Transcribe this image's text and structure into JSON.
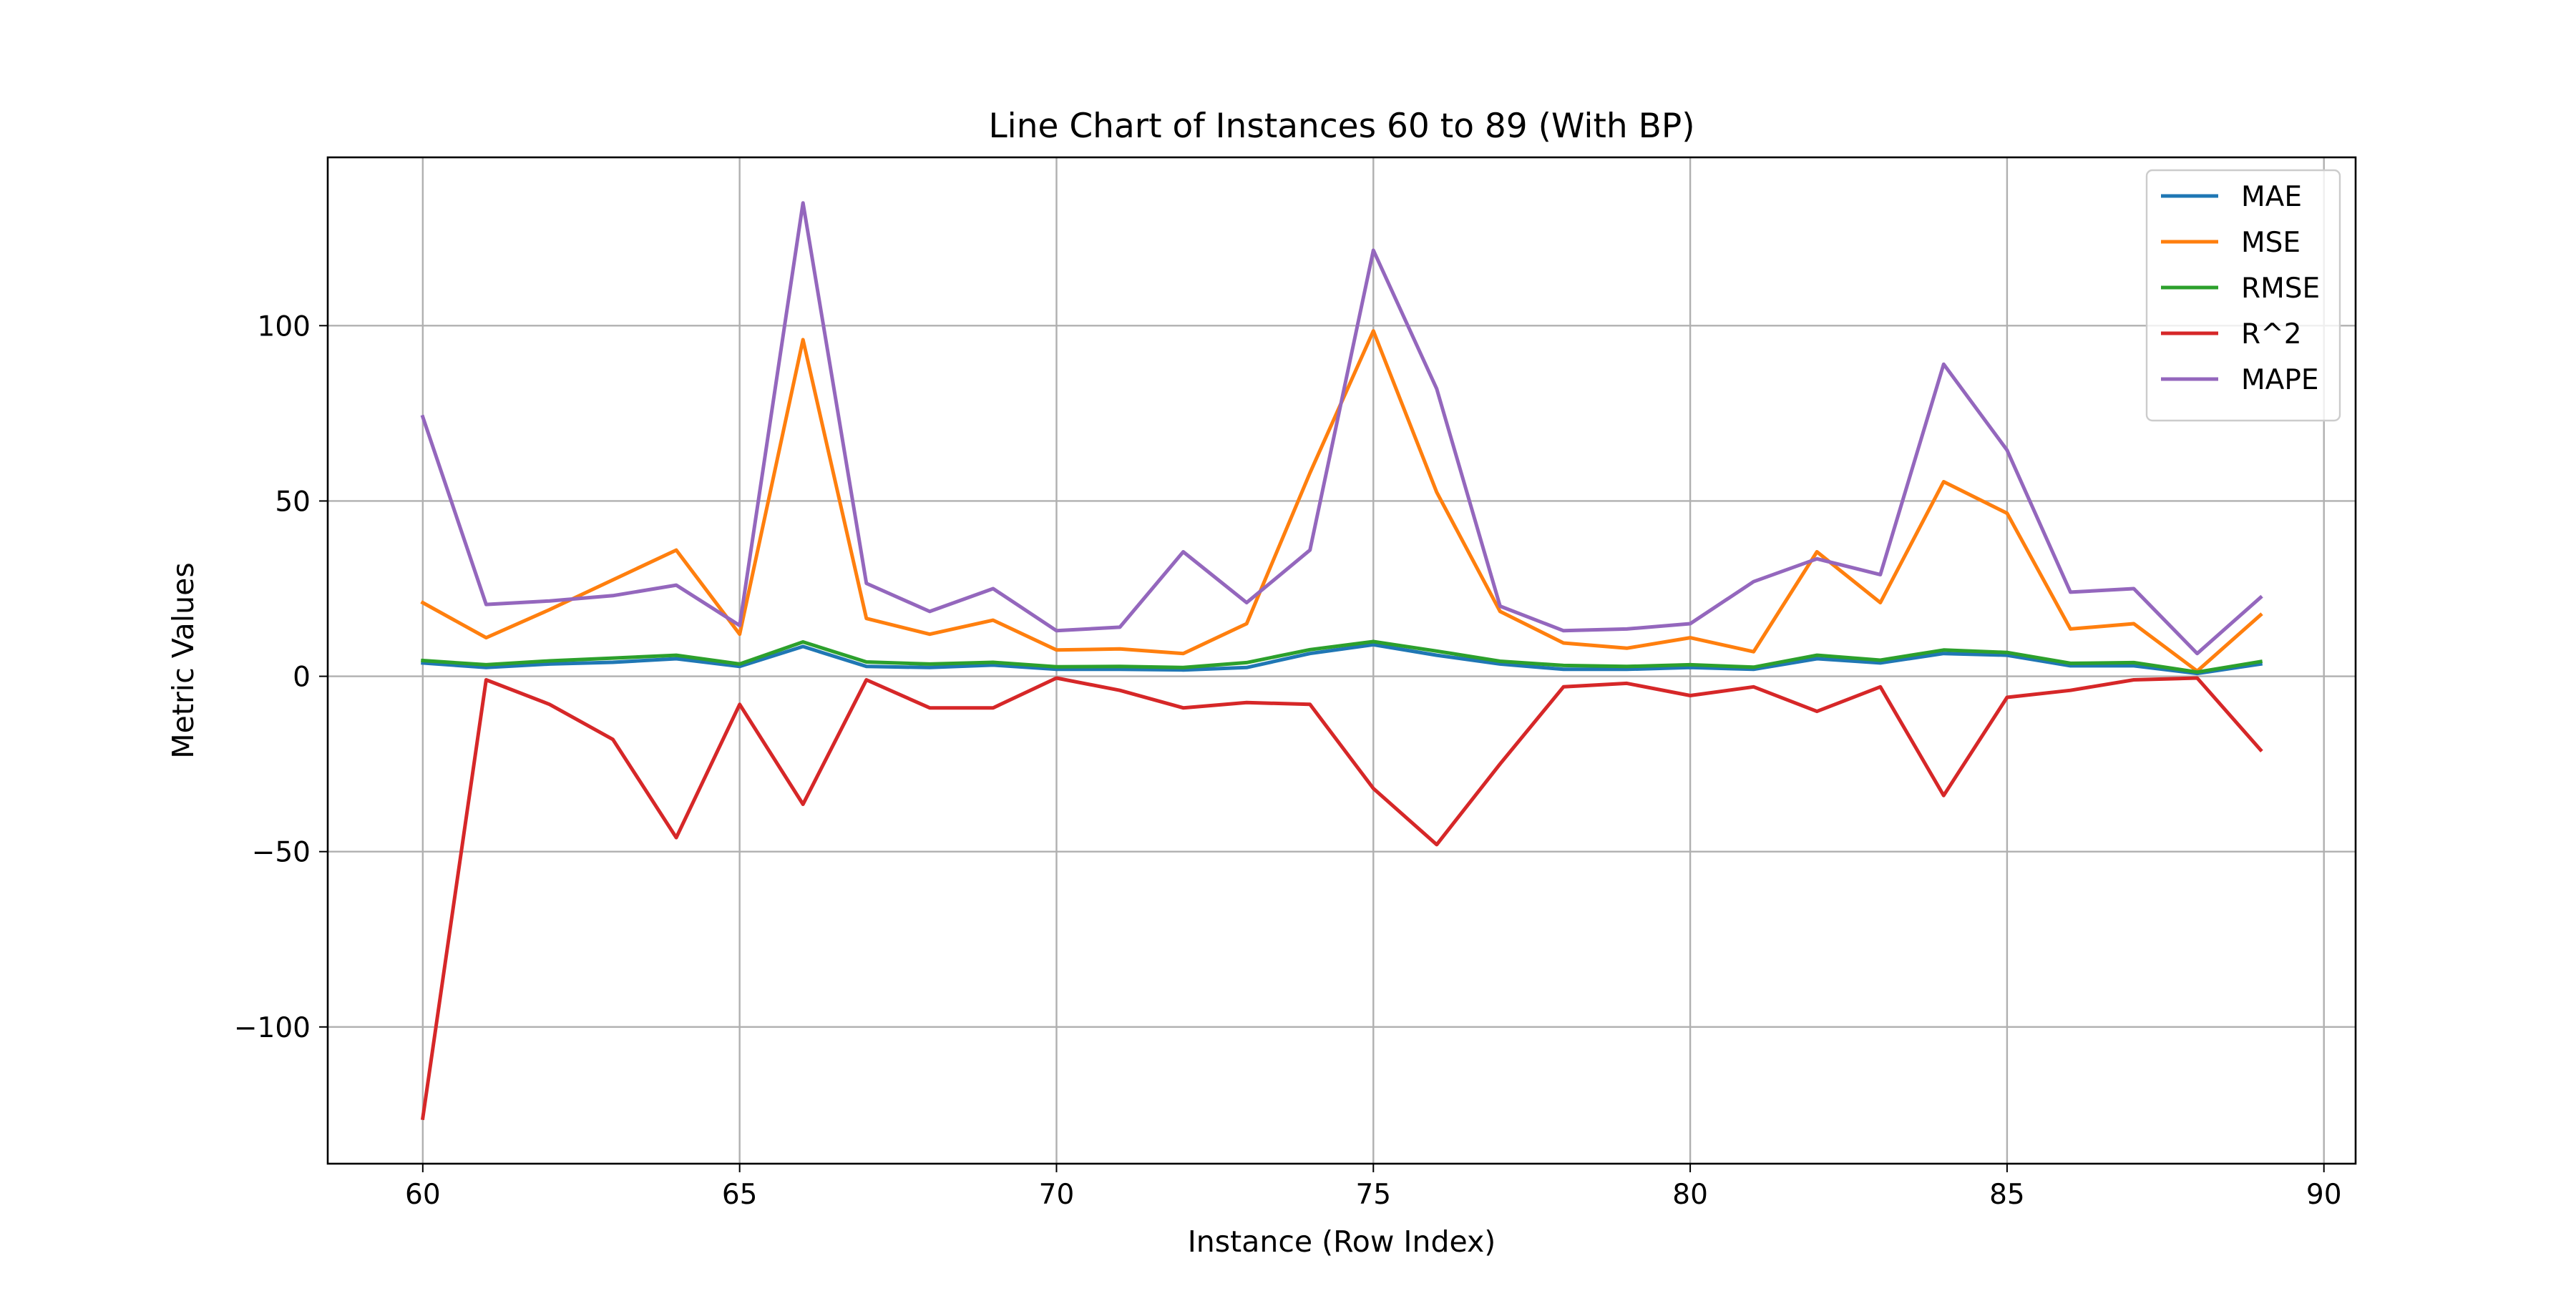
{
  "chart_data": {
    "type": "line",
    "title": "Line Chart of Instances 60 to 89 (With BP)",
    "xlabel": "Instance (Row Index)",
    "ylabel": "Metric Values",
    "xlim": [
      58.5,
      90.5
    ],
    "ylim": [
      -139,
      148
    ],
    "xticks": [
      60,
      65,
      70,
      75,
      80,
      85,
      90
    ],
    "yticks": [
      -100,
      -50,
      0,
      50,
      100
    ],
    "xtick_labels": [
      "60",
      "65",
      "70",
      "75",
      "80",
      "85",
      "90"
    ],
    "ytick_labels": [
      "−100",
      "−50",
      "0",
      "50",
      "100"
    ],
    "grid": true,
    "legend_position": "top-right",
    "x": [
      60,
      61,
      62,
      63,
      64,
      65,
      66,
      67,
      68,
      69,
      70,
      71,
      72,
      73,
      74,
      75,
      76,
      77,
      78,
      79,
      80,
      81,
      82,
      83,
      84,
      85,
      86,
      87,
      88,
      89
    ],
    "series": [
      {
        "name": "MAE",
        "color": "#1f77b4",
        "values": [
          3.8,
          2.5,
          3.5,
          4.0,
          5.0,
          2.8,
          8.5,
          2.8,
          2.5,
          3.2,
          2.0,
          2.0,
          1.8,
          2.5,
          6.5,
          9.0,
          6.0,
          3.5,
          2.0,
          2.0,
          2.5,
          2.0,
          5.0,
          3.8,
          6.5,
          6.0,
          3.0,
          3.0,
          0.8,
          3.5
        ]
      },
      {
        "name": "MSE",
        "color": "#ff7f0e",
        "values": [
          21,
          11,
          19,
          27.5,
          36,
          12,
          96,
          16.5,
          12,
          16,
          7.5,
          7.8,
          6.5,
          15,
          58,
          98.5,
          52.5,
          18.5,
          9.5,
          8,
          11,
          7,
          35.5,
          21,
          55.5,
          46.5,
          13.5,
          15,
          1.5,
          17.5
        ]
      },
      {
        "name": "RMSE",
        "color": "#2ca02c",
        "values": [
          4.5,
          3.3,
          4.4,
          5.2,
          6.0,
          3.5,
          9.8,
          4.1,
          3.5,
          4.0,
          2.7,
          2.8,
          2.5,
          3.9,
          7.6,
          9.9,
          7.2,
          4.3,
          3.1,
          2.8,
          3.3,
          2.6,
          6.0,
          4.6,
          7.5,
          6.8,
          3.7,
          3.9,
          1.2,
          4.2
        ]
      },
      {
        "name": "R^2",
        "color": "#d62728",
        "values": [
          -126,
          -1,
          -8,
          -18,
          -46,
          -8,
          -36.5,
          -1,
          -9,
          -9,
          -0.5,
          -4,
          -9,
          -7.5,
          -8,
          -32,
          -48,
          -25,
          -3,
          -2,
          -5.5,
          -3,
          -10,
          -3,
          -34,
          -6,
          -4,
          -1,
          -0.5,
          -21
        ]
      },
      {
        "name": "MAPE",
        "color": "#9467bd",
        "values": [
          74,
          20.5,
          21.5,
          23,
          26,
          14.5,
          135,
          26.5,
          18.5,
          25,
          13,
          14,
          35.5,
          21,
          36,
          121.5,
          82,
          20,
          13,
          13.5,
          15,
          27,
          33.5,
          29,
          89,
          64.5,
          24,
          25,
          6.5,
          22.5
        ]
      }
    ]
  }
}
